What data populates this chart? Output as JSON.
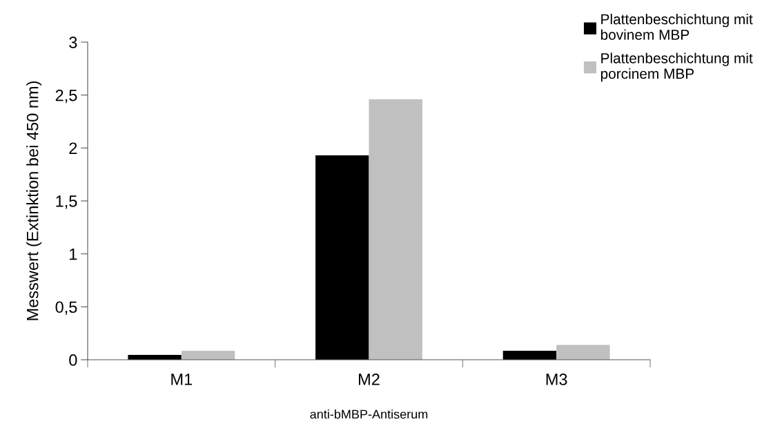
{
  "chart_data": {
    "type": "bar",
    "xlabel": "anti-bMBP-Antiserum",
    "ylabel": "Messwert (Extinktion bei 450 nm)",
    "categories": [
      "M1",
      "M2",
      "M3"
    ],
    "series": [
      {
        "name": "Plattenbeschichtung mit\nbovinem MBP",
        "color": "#000000",
        "values": [
          0.045,
          1.93,
          0.085
        ]
      },
      {
        "name": "Plattenbeschichtung mit\nporcinem MBP",
        "color": "#c0c0c0",
        "values": [
          0.085,
          2.46,
          0.14
        ]
      }
    ],
    "ylim": [
      0,
      3
    ],
    "yticks": [
      0,
      {
        "value": 0.5,
        "label": "0,5"
      },
      1,
      {
        "value": 1.5,
        "label": "1,5"
      },
      2,
      {
        "value": 2.5,
        "label": "2,5"
      },
      3
    ],
    "grid": false,
    "legend": "top right"
  }
}
